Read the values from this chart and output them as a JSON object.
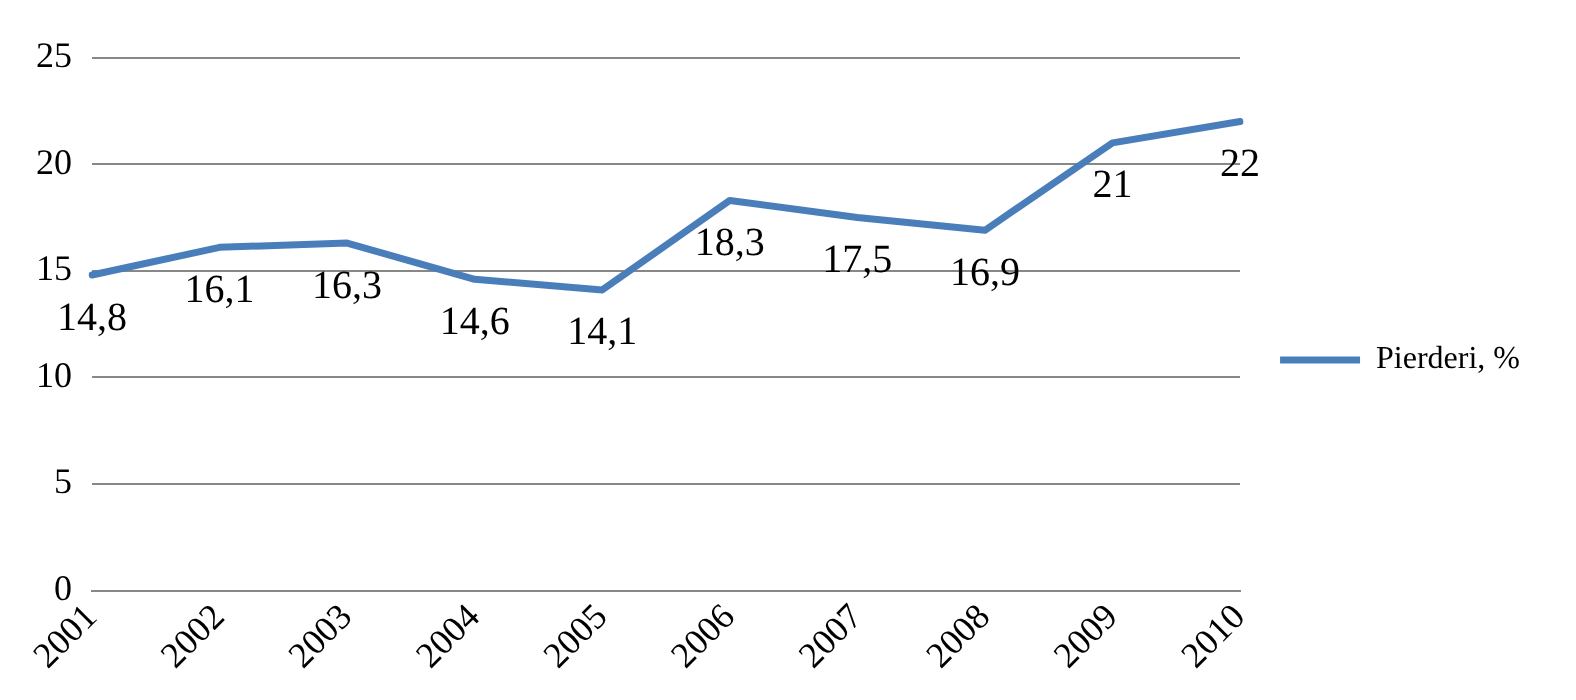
{
  "chart_data": {
    "type": "line",
    "categories": [
      "2001",
      "2002",
      "2003",
      "2004",
      "2005",
      "2006",
      "2007",
      "2008",
      "2009",
      "2010"
    ],
    "series": [
      {
        "name": "Pierderi, %",
        "color": "#4a7ebb",
        "values": [
          14.8,
          16.1,
          16.3,
          14.6,
          14.1,
          18.3,
          17.5,
          16.9,
          21,
          22
        ],
        "value_labels": [
          "14,8",
          "16,1",
          "16,3",
          "14,6",
          "14,1",
          "18,3",
          "17,5",
          "16,9",
          "21",
          "22"
        ]
      }
    ],
    "ylim": [
      0,
      25
    ],
    "yticks": [
      0,
      5,
      10,
      15,
      20,
      25
    ],
    "grid": "y",
    "legend": "right",
    "marker": "none",
    "line_style": "solid"
  }
}
